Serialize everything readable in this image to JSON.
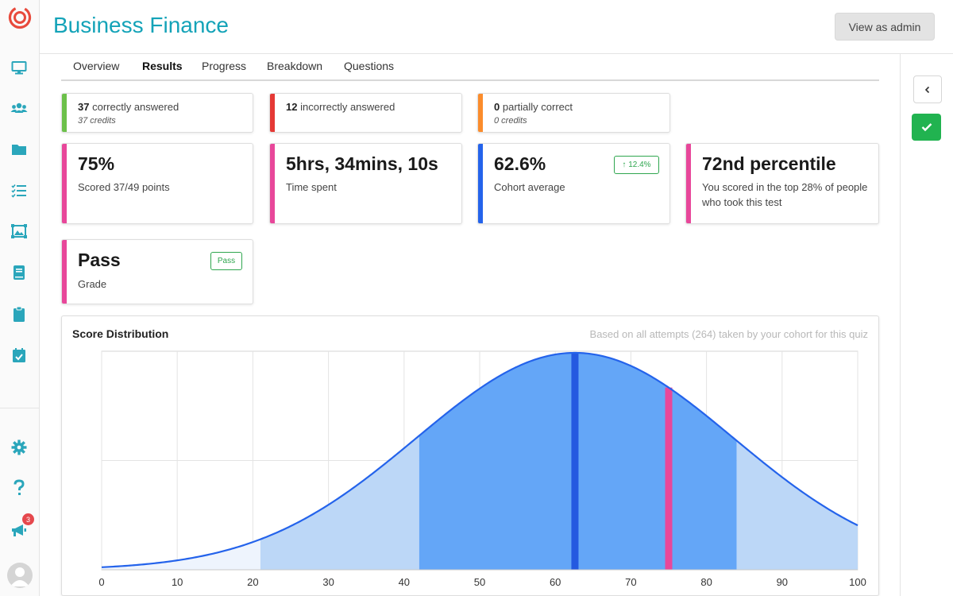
{
  "app": {
    "title": "Business Finance",
    "admin_button": "View as admin"
  },
  "sidebar": {
    "icons": [
      "monitor-icon",
      "users-icon",
      "folder-icon",
      "checklist-icon",
      "gallery-icon",
      "book-icon",
      "clipboard-icon",
      "calendar-check-icon"
    ],
    "bottom_icons": [
      "gear-icon",
      "help-icon",
      "megaphone-icon"
    ],
    "notification_count": "3"
  },
  "tabs": [
    {
      "label": "Overview",
      "active": false
    },
    {
      "label": "Results",
      "active": true
    },
    {
      "label": "Progress",
      "active": false
    },
    {
      "label": "Breakdown",
      "active": false
    },
    {
      "label": "Questions",
      "active": false
    }
  ],
  "answers": {
    "correct": {
      "count": "37",
      "label": "correctly answered",
      "credits": "37 credits",
      "color": "#6cc04a"
    },
    "incorrect": {
      "count": "12",
      "label": "incorrectly answered",
      "color": "#e53935"
    },
    "partial": {
      "count": "0",
      "label": "partially correct",
      "credits": "0 credits",
      "color": "#fb8c2c"
    }
  },
  "stats": {
    "score": {
      "value": "75%",
      "label": "Scored 37/49 points",
      "color": "#e8479a"
    },
    "time": {
      "value": "5hrs, 34mins, 10s",
      "label": "Time spent",
      "color": "#e8479a"
    },
    "cohort": {
      "value": "62.6%",
      "label": "Cohort average",
      "delta": "↑ 12.4%",
      "color": "#2463eb"
    },
    "percentile": {
      "value": "72nd percentile",
      "label": "You scored in the top 28% of people who took this test",
      "color": "#e8479a"
    },
    "grade": {
      "value": "Pass",
      "label": "Grade",
      "badge": "Pass",
      "color": "#e8479a"
    }
  },
  "chart": {
    "title": "Score Distribution",
    "note": "Based on all attempts (264) taken by your cohort for this quiz"
  },
  "chart_data": {
    "type": "area",
    "title": "Score Distribution",
    "distribution": "normal",
    "mean": 62.6,
    "std_dev": 21,
    "x_ticks": [
      0,
      10,
      20,
      30,
      40,
      50,
      60,
      70,
      80,
      90,
      100
    ],
    "xlim": [
      0,
      100
    ],
    "grid": true,
    "bands": [
      {
        "from": 0,
        "to": 21,
        "color": "#eef4fd"
      },
      {
        "from": 21,
        "to": 42,
        "color": "#bcd7f7"
      },
      {
        "from": 42,
        "to": 84,
        "color": "#64a6f7"
      },
      {
        "from": 84,
        "to": 100,
        "color": "#bcd7f7"
      }
    ],
    "markers": [
      {
        "name": "cohort-average",
        "x": 62.6,
        "color": "#2459e0"
      },
      {
        "name": "your-score",
        "x": 75,
        "color": "#e8479a"
      }
    ],
    "curve_color": "#2463eb"
  }
}
